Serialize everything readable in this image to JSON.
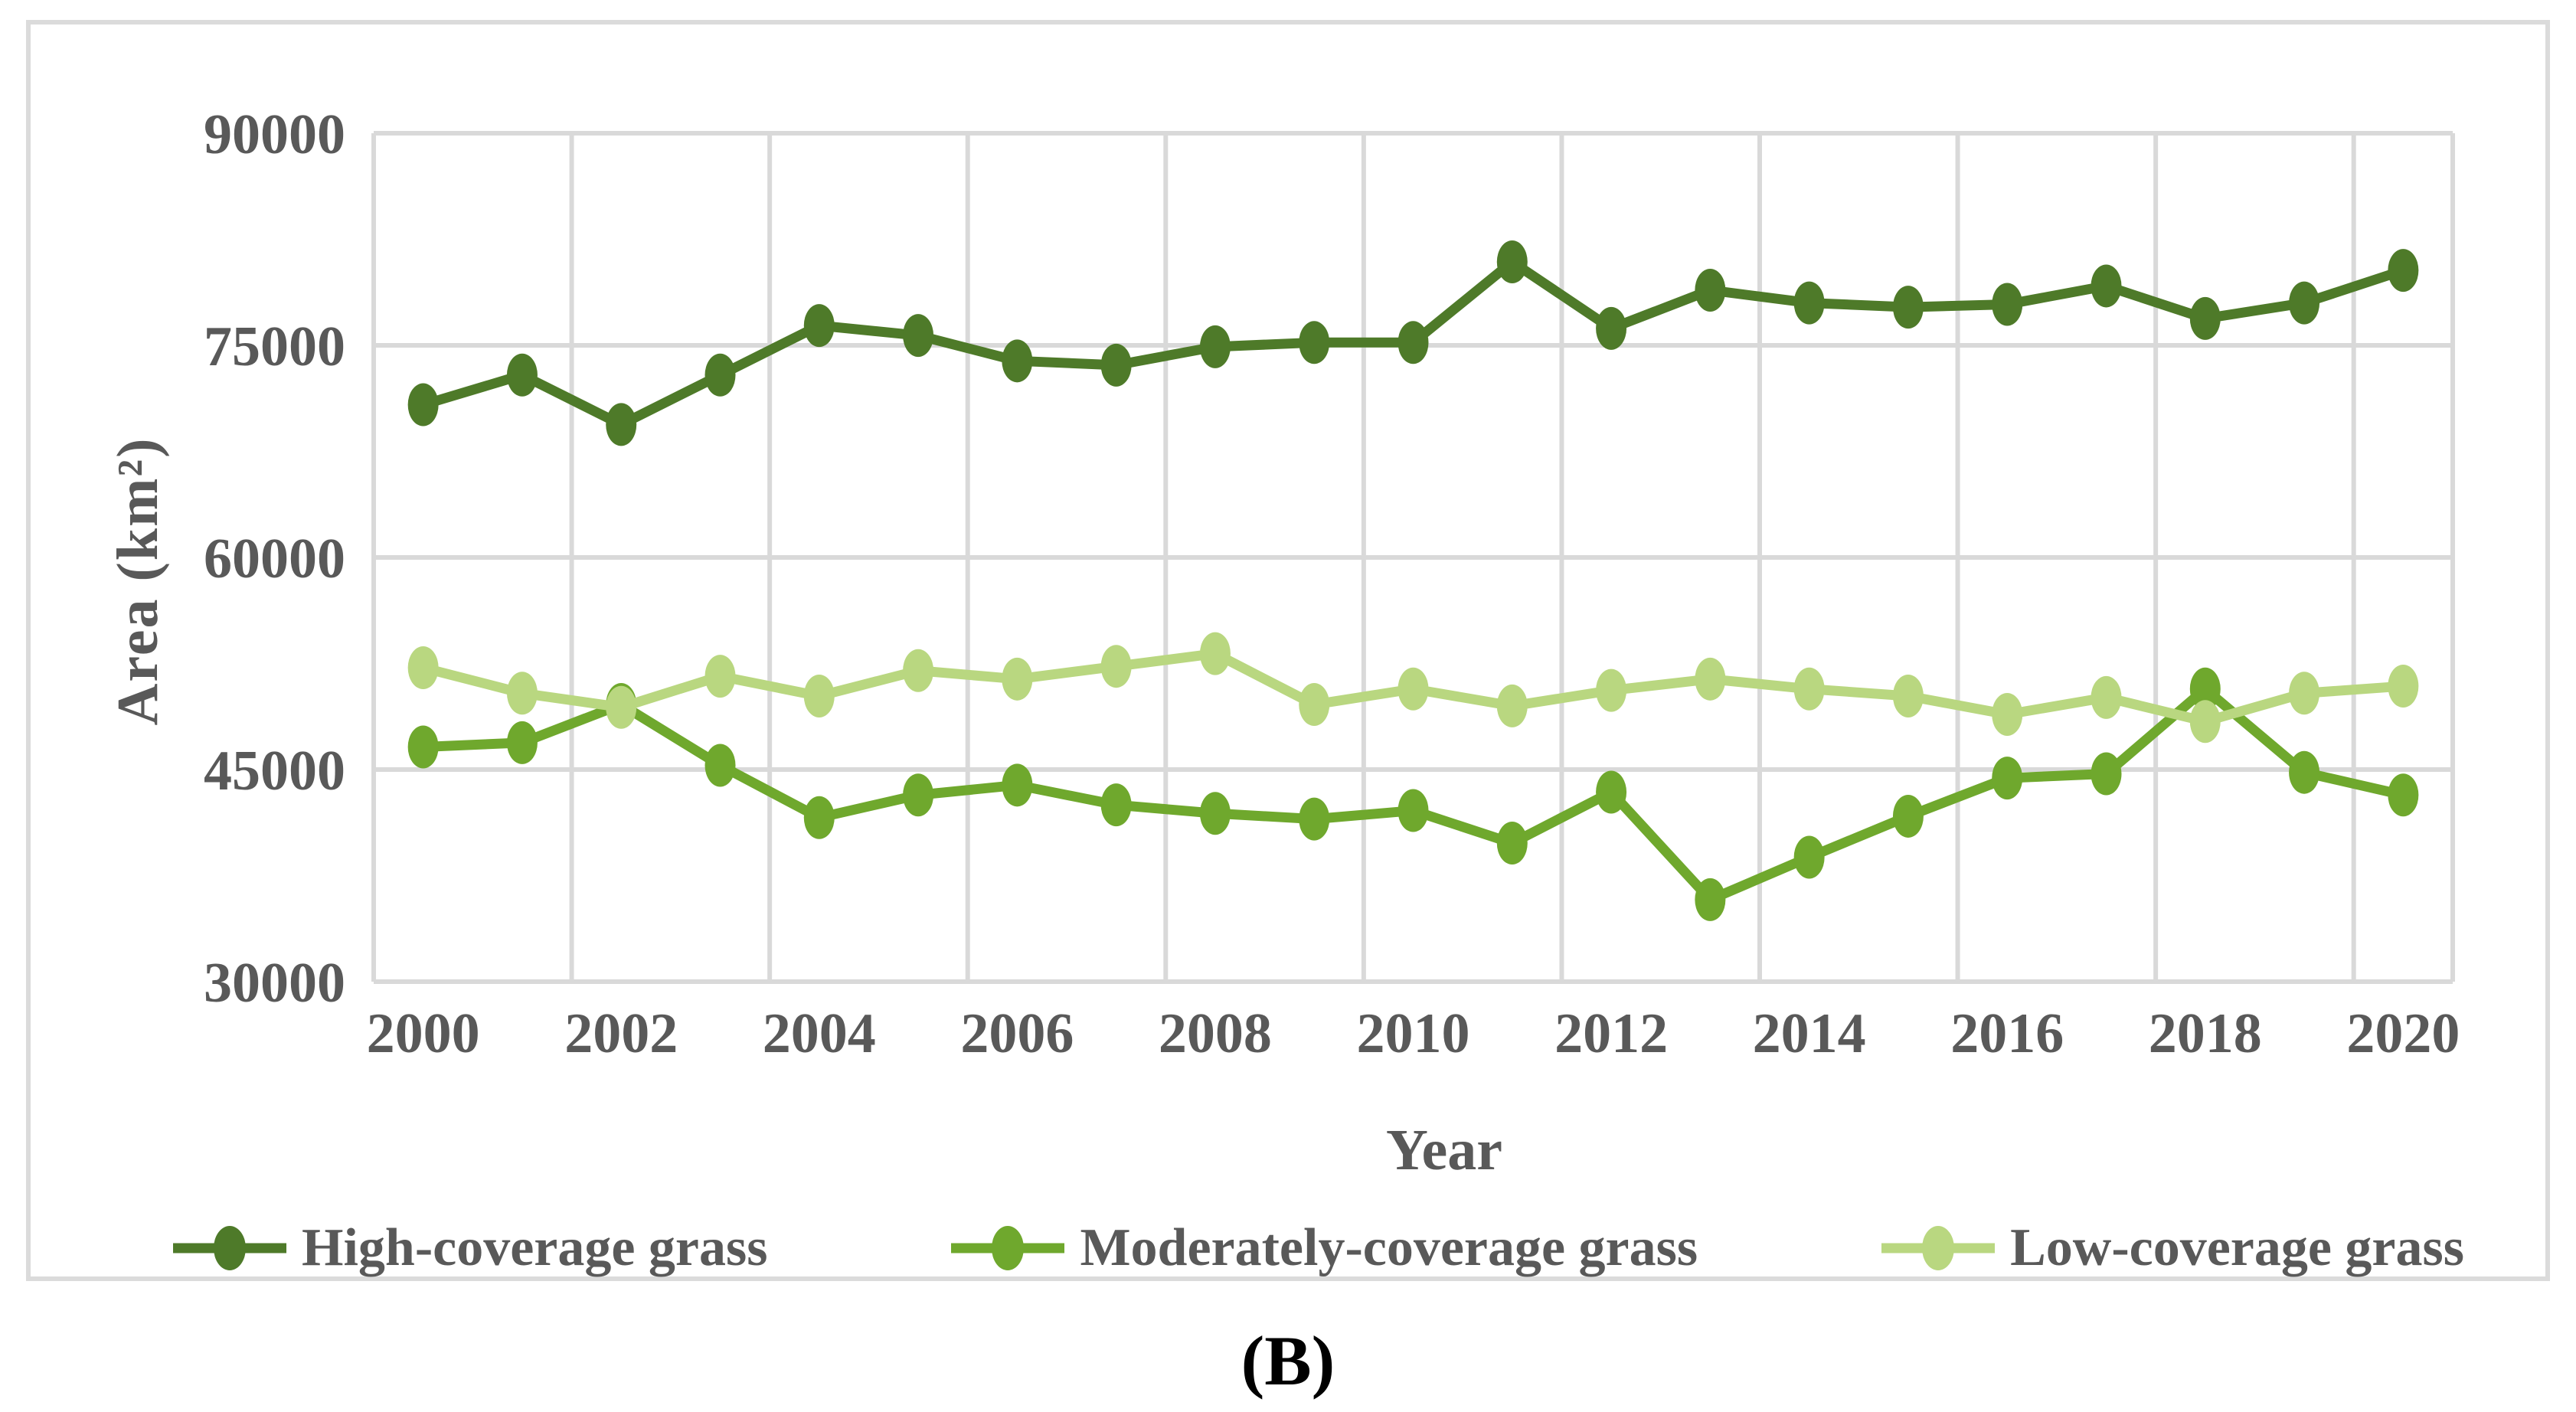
{
  "figure": {
    "caption": "(B)"
  },
  "colors": {
    "axis_text": "#595959",
    "gridline": "#d9d9d9",
    "figure_border": "#dbdbdb",
    "background": "#ffffff",
    "caption_text": "#000000"
  },
  "chart_data": {
    "type": "line",
    "title": "",
    "xlabel": "Year",
    "ylabel": "Area (km²)",
    "x": [
      2000,
      2001,
      2002,
      2003,
      2004,
      2005,
      2006,
      2007,
      2008,
      2009,
      2010,
      2011,
      2012,
      2013,
      2014,
      2015,
      2016,
      2017,
      2018,
      2019,
      2020
    ],
    "x_tick_labels": [
      "2000",
      "2002",
      "2004",
      "2006",
      "2008",
      "2010",
      "2012",
      "2014",
      "2016",
      "2018",
      "2020"
    ],
    "y_ticks": [
      90000,
      75000,
      60000,
      45000,
      30000
    ],
    "ylim": [
      30000,
      90000
    ],
    "grid": true,
    "legend_position": "bottom",
    "series": [
      {
        "key": "high",
        "name": "High-coverage grass",
        "color": "#4e7a29",
        "values": [
          70800,
          72900,
          69400,
          72900,
          76400,
          75700,
          73900,
          73600,
          74900,
          75200,
          75200,
          80900,
          76200,
          78900,
          78000,
          77700,
          77900,
          79200,
          76900,
          78000,
          80300
        ]
      },
      {
        "key": "moderate",
        "name": "Moderately-coverage grass",
        "color": "#6fa82d",
        "values": [
          46600,
          46900,
          49600,
          45300,
          41600,
          43200,
          43900,
          42500,
          41900,
          41500,
          42100,
          39800,
          43400,
          35800,
          38800,
          41700,
          44400,
          44700,
          50700,
          44800,
          43200
        ]
      },
      {
        "key": "low",
        "name": "Low-coverage grass",
        "color": "#b9d780",
        "values": [
          52200,
          50400,
          49400,
          51600,
          50200,
          52000,
          51400,
          52300,
          53200,
          49600,
          50700,
          49500,
          50600,
          51400,
          50700,
          50200,
          48900,
          50100,
          48400,
          50400,
          50900
        ]
      }
    ]
  }
}
